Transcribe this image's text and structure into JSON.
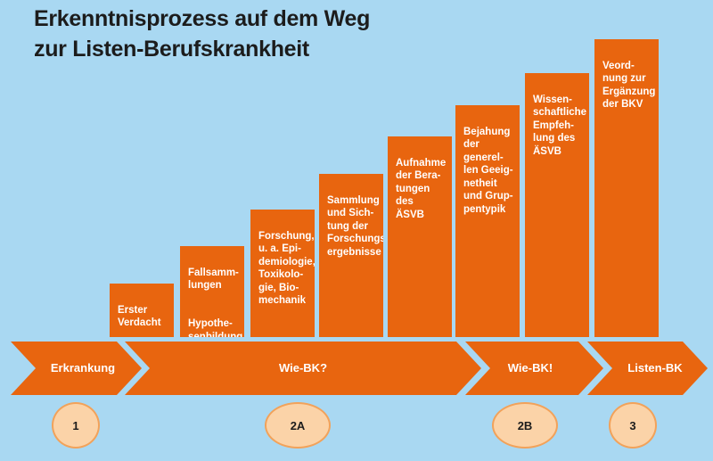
{
  "title": {
    "line1": "Erkenntnisprozess auf dem Weg",
    "line2": "zur Listen-Berufskrankheit"
  },
  "steps": [
    {
      "text": "Erster\nVerdacht"
    },
    {
      "text": "Fallsamm-\nlungen",
      "text2": "Hypothe-\nsenbildung"
    },
    {
      "text": "Forschung,\nu. a. Epi-\ndemiologie,\nToxikolo-\ngie, Bio-\nmechanik"
    },
    {
      "text": "Sammlung\nund Sich-\ntung der\nForschungs-\nergebnisse"
    },
    {
      "text": "Aufnahme\nder Bera-\ntungen des\nÄSVB"
    },
    {
      "text": "Bejahung\nder generel-\nlen Geeig-\nnetheit\nund Grup-\npentypik"
    },
    {
      "text": "Wissen-\nschaftliche\nEmpfeh-\nlung des\nÄSVB"
    },
    {
      "text": "Veord-\nnung zur\nErgänzung\nder BKV"
    }
  ],
  "phases": [
    {
      "label": "Erkrankung",
      "badge": "1"
    },
    {
      "label": "Wie-BK?",
      "badge": "2A"
    },
    {
      "label": "Wie-BK!",
      "badge": "2B"
    },
    {
      "label": "Listen-BK",
      "badge": "3"
    }
  ],
  "colors": {
    "background": "#a9d8f2",
    "accent": "#e8650f",
    "badge_fill": "#fbd3a8",
    "badge_border": "#f2a25a"
  }
}
